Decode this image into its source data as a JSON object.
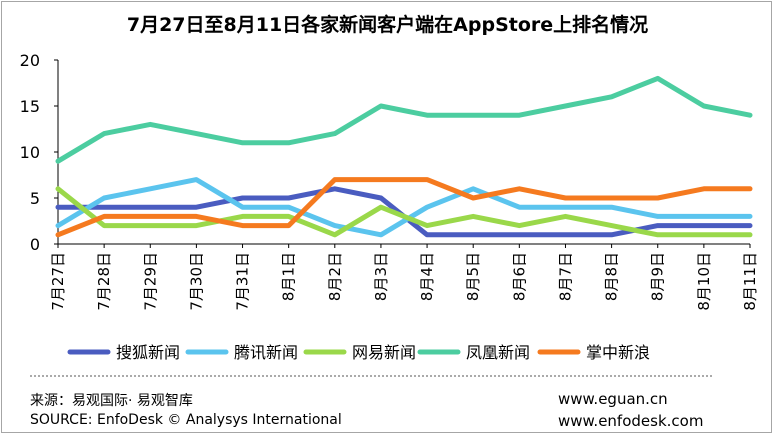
{
  "chart_data": {
    "type": "line",
    "title": "7月27日至8月11日各家新闻客户端在AppStore上排名情况",
    "categories": [
      "7月27日",
      "7月28日",
      "7月29日",
      "7月30日",
      "7月31日",
      "8月1日",
      "8月2日",
      "8月3日",
      "8月4日",
      "8月5日",
      "8月6日",
      "8月7日",
      "8月8日",
      "8月9日",
      "8月10日",
      "8月11日"
    ],
    "yticks": [
      "0",
      "5",
      "10",
      "15",
      "20"
    ],
    "ylim": [
      0,
      20
    ],
    "grid": false,
    "legend_position": "bottom",
    "series": [
      {
        "name": "搜狐新闻",
        "color": "#4a5cc0",
        "values": [
          4,
          4,
          4,
          4,
          5,
          5,
          6,
          5,
          1,
          1,
          1,
          1,
          1,
          2,
          2,
          2
        ]
      },
      {
        "name": "腾讯新闻",
        "color": "#5bc4ee",
        "values": [
          2,
          5,
          6,
          7,
          4,
          4,
          2,
          1,
          4,
          6,
          4,
          4,
          4,
          3,
          3,
          3
        ]
      },
      {
        "name": "网易新闻",
        "color": "#9ad84a",
        "values": [
          6,
          2,
          2,
          2,
          3,
          3,
          1,
          4,
          2,
          3,
          2,
          3,
          2,
          1,
          1,
          1
        ]
      },
      {
        "name": "凤凰新闻",
        "color": "#4ccda0",
        "values": [
          9,
          12,
          13,
          12,
          11,
          11,
          12,
          15,
          14,
          14,
          14,
          15,
          16,
          18,
          15,
          14
        ]
      },
      {
        "name": "掌中新浪",
        "color": "#f57a1f",
        "values": [
          1,
          3,
          3,
          3,
          2,
          2,
          7,
          7,
          7,
          5,
          6,
          5,
          5,
          5,
          6,
          6
        ]
      }
    ]
  },
  "footer": {
    "source_cn": "来源：易观国际· 易观智库",
    "source_en": "SOURCE: EnfoDesk © Analysys International",
    "url1": "www.eguan.cn",
    "url2": "www.enfodesk.com"
  }
}
